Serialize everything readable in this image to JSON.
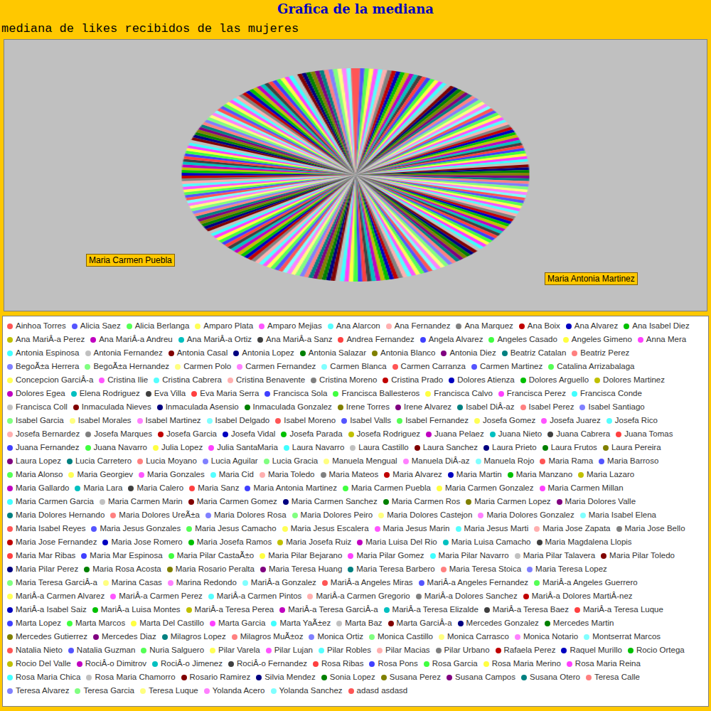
{
  "chart_data": {
    "type": "pie",
    "title": "Grafica de la mediana",
    "subtitle": "mediana de likes recibidos de las mujeres",
    "legend": "bottom",
    "annotations": [
      "Maria Carmen Puebla",
      "Maria Antonia Martinez"
    ],
    "categories": [
      "Ainhoa Torres",
      "Alicia Saez",
      "Alicia Berlanga",
      "Amparo Plata",
      "Amparo Mejias",
      "Ana Alarcon",
      "Ana Fernandez",
      "Ana Marquez",
      "Ana Boix",
      "Ana Alvarez",
      "Ana Isabel Diez",
      "Ana MariÂ-a Perez",
      "Ana MariÂ-a Andreu",
      "Ana MariÂ-a Ortiz",
      "Ana MariÂ-a Sanz",
      "Andrea Fernandez",
      "Angela Alvarez",
      "Angeles Casado",
      "Angeles Gimeno",
      "Anna Mera",
      "Antonia Espinosa",
      "Antonia Fernandez",
      "Antonia Casal",
      "Antonia Lopez",
      "Antonia Salazar",
      "Antonia Blanco",
      "Antonia Diez",
      "Beatriz Catalan",
      "Beatriz Perez",
      "BegoÃ±a Herrera",
      "BegoÃ±a Hernandez",
      "Carmen Polo",
      "Carmen Fernandez",
      "Carmen Blanca",
      "Carmen Carranza",
      "Carmen Martinez",
      "Catalina Arrizabalaga",
      "Concepcion GarciÂ-a",
      "Cristina Ilie",
      "Cristina Cabrera",
      "Cristina Benavente",
      "Cristina Moreno",
      "Cristina Prado",
      "Dolores Atienza",
      "Dolores Arguello",
      "Dolores Martinez",
      "Dolores Egea",
      "Elena Rodriguez",
      "Eva Villa",
      "Eva Maria Serra",
      "Francisca Sola",
      "Francisca Ballesteros",
      "Francisca Calvo",
      "Francisca Perez",
      "Francisca Conde",
      "Francisca Coll",
      "Inmaculada Nieves",
      "Inmaculada Asensio",
      "Inmaculada Gonzalez",
      "Irene Torres",
      "Irene Alvarez",
      "Isabel DiÂ-az",
      "Isabel Perez",
      "Isabel Santiago",
      "Isabel Garcia",
      "Isabel Morales",
      "Isabel Martinez",
      "Isabel Delgado",
      "Isabel Moreno",
      "Isabel Valls",
      "Isabel Fernandez",
      "Josefa Gomez",
      "Josefa Juarez",
      "Josefa Rico",
      "Josefa Bernardez",
      "Josefa Marques",
      "Josefa Garcia",
      "Josefa Vidal",
      "Josefa Parada",
      "Josefa Rodriguez",
      "Juana Pelaez",
      "Juana Nieto",
      "Juana Cabrera",
      "Juana Tomas",
      "Juana Fernandez",
      "Juana Navarro",
      "Julia Lopez",
      "Julia SantaMaria",
      "Laura Navarro",
      "Laura Castillo",
      "Laura Sanchez",
      "Laura Prieto",
      "Laura Frutos",
      "Laura Pereira",
      "Laura Lopez",
      "Lucia Carretero",
      "Lucia Moyano",
      "Lucia Aguilar",
      "Lucia Gracia",
      "Manuela Mengual",
      "Manuela DiÂ-az",
      "Manuela Rojo",
      "Maria Rama",
      "Maria Barroso",
      "Maria Alonso",
      "Maria Georgiev",
      "Maria Gonzales",
      "Maria Cid",
      "Maria Toledo",
      "Maria Mateos",
      "Maria Alvarez",
      "Maria Martin",
      "Maria Manzano",
      "Maria Lazaro",
      "Maria Gallardo",
      "Maria Lara",
      "Maria Calero",
      "Maria Sanz",
      "Maria Antonia Martinez",
      "Maria Carmen Puebla",
      "Maria Carmen Gonzalez",
      "Maria Carmen Millan",
      "Maria Carmen Garcia",
      "Maria Carmen Marin",
      "Maria Carmen Gomez",
      "Maria Carmen Sanchez",
      "Maria Carmen Ros",
      "Maria Carmen Lopez",
      "Maria Dolores Valle",
      "Maria Dolores Hernando",
      "Maria Dolores UreÃ±a",
      "Maria Dolores Rosa",
      "Maria Dolores Peiro",
      "Maria Dolores Castejon",
      "Maria Dolores Gonzalez",
      "Maria Isabel Elena",
      "Maria Isabel Reyes",
      "Maria Jesus Gonzales",
      "Maria Jesus Camacho",
      "Maria Jesus Escalera",
      "Maria Jesus Marin",
      "Maria Jesus Marti",
      "Maria Jose Zapata",
      "Maria Jose Bello",
      "Maria Jose Fernandez",
      "Maria Jose Romero",
      "Maria Josefa Ramos",
      "Maria Josefa Ruiz",
      "Maria Luisa Del Rio",
      "Maria Luisa Camacho",
      "Maria Magdalena Llopis",
      "Maria Mar Ribas",
      "Maria Mar Espinosa",
      "Maria Pilar CastaÃ±o",
      "Maria Pilar Bejarano",
      "Maria Pilar Gomez",
      "Maria Pilar Navarro",
      "Maria Pilar Talavera",
      "Maria Pilar Toledo",
      "Maria Pilar Perez",
      "Maria Rosa Acosta",
      "Maria Rosario Peralta",
      "Maria Teresa Huang",
      "Maria Teresa Barbero",
      "Maria Teresa Stoica",
      "Maria Teresa Lopez",
      "Maria Teresa GarciÂ-a",
      "Marina Casas",
      "Marina Redondo",
      "MariÂ-a Gonzalez",
      "MariÂ-a Angeles Miras",
      "MariÂ-a Angeles Fernandez",
      "MariÂ-a Angeles Guerrero",
      "MariÂ-a Carmen Alvarez",
      "MariÂ-a Carmen Perez",
      "MariÂ-a Carmen Pintos",
      "MariÂ-a Carmen Gregorio",
      "MariÂ-a Dolores Sanchez",
      "MariÂ-a Dolores MartiÂ-nez",
      "MariÂ-a Isabel Saiz",
      "MariÂ-a Luisa Montes",
      "MariÂ-a Teresa Perea",
      "MariÂ-a Teresa GarciÂ-a",
      "MariÂ-a Teresa Elizalde",
      "MariÂ-a Teresa Baez",
      "MariÂ-a Teresa Luque",
      "Marta Lopez",
      "Marta Marcos",
      "Marta Del Castillo",
      "Marta Garcia",
      "Marta YaÃ±ez",
      "Marta Baz",
      "Marta GarciÂ-a",
      "Mercedes Gonzalez",
      "Mercedes Martin",
      "Mercedes Gutierrez",
      "Mercedes Diaz",
      "Milagros Lopez",
      "Milagros MuÃ±oz",
      "Monica Ortiz",
      "Monica Castillo",
      "Monica Carrasco",
      "Monica Notario",
      "Montserrat Marcos",
      "Natalia Nieto",
      "Natalia Guzman",
      "Nuria Salguero",
      "Pilar Varela",
      "Pilar Lujan",
      "Pilar Robles",
      "Pilar Macias",
      "Pilar Urbano",
      "Rafaela Perez",
      "Raquel Murillo",
      "Rocio Ortega",
      "Rocio Del Valle",
      "RociÂ-o Dimitrov",
      "RociÂ-o Jimenez",
      "RociÂ-o Fernandez",
      "Rosa Ribas",
      "Rosa Pons",
      "Rosa Garcia",
      "Rosa Maria Merino",
      "Rosa Maria Reina",
      "Rosa Maria Chica",
      "Rosa Maria Chamorro",
      "Rosario Ramirez",
      "Silvia Mendez",
      "Sonia Lopez",
      "Susana Perez",
      "Susana Campos",
      "Susana Otero",
      "Teresa Calle",
      "Teresa Alvarez",
      "Teresa Garcia",
      "Teresa Luque",
      "Yolanda Acero",
      "Yolanda Sanchez",
      "adasd asdasd"
    ],
    "values": [
      1,
      1,
      1,
      1,
      1,
      1,
      1,
      1,
      1,
      1,
      1,
      1,
      1,
      1,
      1,
      1,
      1,
      1,
      1,
      1,
      1,
      1,
      1,
      1,
      1,
      1,
      1,
      1,
      1,
      1,
      1,
      1,
      1,
      1,
      1,
      1,
      1,
      1,
      1,
      1,
      1,
      1,
      1,
      1,
      1,
      1,
      1,
      1,
      1,
      1,
      1,
      1,
      1,
      1,
      1,
      1,
      1,
      1,
      1,
      1,
      1,
      1,
      1,
      1,
      1,
      1,
      1,
      1,
      1,
      1,
      1,
      1,
      1,
      1,
      1,
      1,
      1,
      1,
      1,
      1,
      1,
      1,
      1,
      1,
      1,
      1,
      1,
      1,
      1,
      1,
      1,
      1,
      1,
      1,
      1,
      1,
      1,
      1,
      1,
      1,
      1,
      1,
      1,
      1,
      1,
      1,
      1,
      1,
      1,
      1,
      1,
      1,
      1,
      1,
      1,
      1,
      1,
      1,
      1,
      1,
      1,
      1,
      1,
      1,
      1,
      1,
      1,
      1,
      1,
      1,
      1,
      1,
      1,
      1,
      1,
      1,
      1,
      1,
      1,
      1,
      1,
      1,
      1,
      1,
      1,
      1,
      1,
      1,
      1,
      1,
      1,
      1,
      1,
      1,
      1,
      1,
      1,
      1,
      1,
      1,
      1,
      1,
      1,
      1,
      1,
      1,
      1,
      1,
      1,
      1,
      1,
      1,
      1,
      1,
      1,
      1,
      1,
      1,
      1,
      1,
      1,
      1,
      1,
      1,
      1,
      1,
      1,
      1,
      1,
      1,
      1,
      1,
      1,
      1,
      1,
      1,
      1,
      1,
      1,
      1,
      1,
      1,
      1,
      1,
      1,
      1,
      1,
      1,
      1,
      1,
      1,
      1,
      1,
      1,
      1,
      1,
      1,
      1,
      1,
      1,
      1,
      1,
      1,
      1,
      1,
      1,
      1,
      1,
      1,
      1,
      1,
      1,
      1,
      1,
      1,
      1,
      1,
      1,
      1
    ],
    "colors": [
      "#FF5555",
      "#5555FF",
      "#55FF55",
      "#FFFF55",
      "#FF55FF",
      "#55FFFF",
      "#FFAFAF",
      "#808080",
      "#C00000",
      "#0000C0",
      "#00C000",
      "#C0C000",
      "#C000C0",
      "#00C0C0",
      "#404040",
      "#FF4040",
      "#4040FF",
      "#40FF40",
      "#FFFF40",
      "#FF40FF",
      "#40FFFF",
      "#C0C0C0",
      "#800000",
      "#000080",
      "#008000",
      "#808000",
      "#800080",
      "#008080",
      "#FF8080",
      "#8080FF",
      "#80FF80",
      "#FFFF80",
      "#FF80FF",
      "#80FFFF",
      "#FF5555",
      "#5555FF",
      "#55FF55",
      "#FFFF55",
      "#FF55FF",
      "#55FFFF",
      "#FFAFAF",
      "#808080",
      "#C00000",
      "#0000C0",
      "#00C000",
      "#C0C000",
      "#C000C0",
      "#00C0C0",
      "#404040",
      "#FF4040",
      "#4040FF",
      "#40FF40",
      "#FFFF40",
      "#FF40FF",
      "#40FFFF",
      "#C0C0C0",
      "#800000",
      "#000080",
      "#008000",
      "#808000",
      "#800080",
      "#008080",
      "#FF8080",
      "#8080FF",
      "#80FF80",
      "#FFFF80",
      "#FF80FF",
      "#80FFFF",
      "#FF5555",
      "#5555FF",
      "#55FF55",
      "#FFFF55",
      "#FF55FF",
      "#55FFFF",
      "#FFAFAF",
      "#808080",
      "#C00000",
      "#0000C0",
      "#00C000",
      "#C0C000",
      "#C000C0",
      "#00C0C0",
      "#404040",
      "#FF4040",
      "#4040FF",
      "#40FF40",
      "#FFFF40",
      "#FF40FF",
      "#40FFFF",
      "#C0C0C0",
      "#800000",
      "#000080",
      "#008000",
      "#808000",
      "#800080",
      "#008080",
      "#FF8080",
      "#8080FF",
      "#80FF80",
      "#FFFF80",
      "#FF80FF",
      "#80FFFF",
      "#FF5555",
      "#5555FF",
      "#55FF55",
      "#FFFF55",
      "#FF55FF",
      "#55FFFF",
      "#FFAFAF",
      "#808080",
      "#C00000",
      "#0000C0",
      "#00C000",
      "#C0C000",
      "#C000C0",
      "#00C0C0",
      "#404040",
      "#FF4040",
      "#4040FF",
      "#40FF40",
      "#FFFF40",
      "#FF40FF",
      "#40FFFF",
      "#C0C0C0",
      "#800000",
      "#000080",
      "#008000",
      "#808000",
      "#800080",
      "#008080",
      "#FF8080",
      "#8080FF",
      "#80FF80",
      "#FFFF80",
      "#FF80FF",
      "#80FFFF",
      "#FF5555",
      "#5555FF",
      "#55FF55",
      "#FFFF55",
      "#FF55FF",
      "#55FFFF",
      "#FFAFAF",
      "#808080",
      "#C00000",
      "#0000C0",
      "#00C000",
      "#C0C000",
      "#C000C0",
      "#00C0C0",
      "#404040",
      "#FF4040",
      "#4040FF",
      "#40FF40",
      "#FFFF40",
      "#FF40FF",
      "#40FFFF",
      "#C0C0C0",
      "#800000",
      "#000080",
      "#008000",
      "#808000",
      "#800080",
      "#008080",
      "#FF8080",
      "#8080FF",
      "#80FF80",
      "#FFFF80",
      "#FF80FF",
      "#80FFFF",
      "#FF5555",
      "#5555FF",
      "#55FF55",
      "#FFFF55",
      "#FF55FF",
      "#55FFFF",
      "#FFAFAF",
      "#808080",
      "#C00000",
      "#0000C0",
      "#00C000",
      "#C0C000",
      "#C000C0",
      "#00C0C0",
      "#404040",
      "#FF4040",
      "#4040FF",
      "#40FF40",
      "#FFFF40",
      "#FF40FF",
      "#40FFFF",
      "#C0C0C0",
      "#800000",
      "#000080",
      "#008000",
      "#808000",
      "#800080",
      "#008080",
      "#FF8080",
      "#8080FF",
      "#80FF80",
      "#FFFF80",
      "#FF80FF",
      "#80FFFF",
      "#FF5555",
      "#5555FF",
      "#55FF55",
      "#FFFF55",
      "#FF55FF",
      "#55FFFF",
      "#FFAFAF",
      "#808080",
      "#C00000",
      "#0000C0",
      "#00C000",
      "#C0C000",
      "#C000C0",
      "#00C0C0",
      "#404040",
      "#FF4040",
      "#4040FF",
      "#40FF40",
      "#FFFF40",
      "#FF40FF",
      "#40FFFF",
      "#C0C0C0",
      "#800000",
      "#000080",
      "#008000",
      "#808000",
      "#800080",
      "#008080",
      "#FF8080",
      "#8080FF",
      "#80FF80",
      "#FFFF80",
      "#FF80FF",
      "#80FFFF",
      "#FF5555"
    ]
  }
}
